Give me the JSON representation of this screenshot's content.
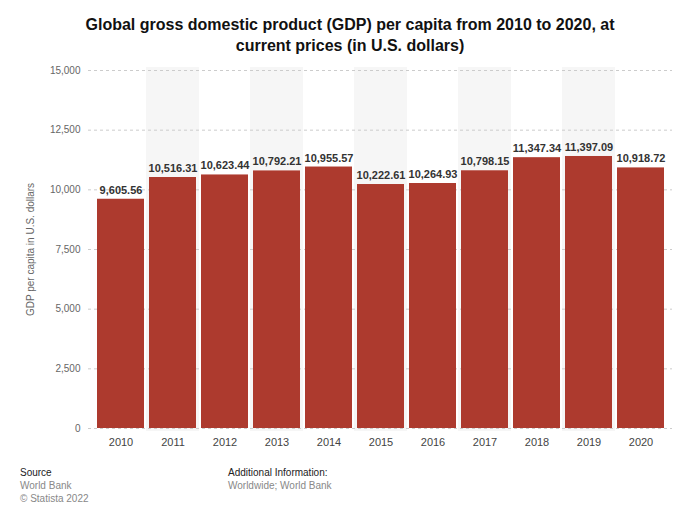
{
  "chart_data": {
    "type": "bar",
    "title": "Global gross domestic product (GDP) per capita from 2010 to 2020, at current prices (in U.S. dollars)",
    "y_label": "GDP per capita in U.S. dollars",
    "categories": [
      "2010",
      "2011",
      "2012",
      "2013",
      "2014",
      "2015",
      "2016",
      "2017",
      "2018",
      "2019",
      "2020"
    ],
    "values": [
      9605.56,
      10516.31,
      10623.44,
      10792.21,
      10955.57,
      10222.61,
      10264.93,
      10798.15,
      11347.34,
      11397.09,
      10918.72
    ],
    "value_labels": [
      "9,605.56",
      "10,516.31",
      "10,623.44",
      "10,792.21",
      "10,955.57",
      "10,222.61",
      "10,264.93",
      "10,798.15",
      "11,347.34",
      "11,397.09",
      "10,918.72"
    ],
    "color": "#ad3a2e",
    "ylim": [
      0,
      15000
    ],
    "yticks": [
      0,
      {
        "value": 2500,
        "label": "2,500"
      },
      {
        "value": 5000,
        "label": "5,000"
      },
      {
        "value": 7500,
        "label": "7,500"
      },
      {
        "value": 10000,
        "label": "10,000"
      },
      {
        "value": 12500,
        "label": "12,500"
      },
      {
        "value": 15000,
        "label": "15,000"
      }
    ],
    "grid": true,
    "data_labels": true,
    "footer": {
      "source_heading": "Source",
      "source": "World Bank",
      "copyright": "© Statista 2022",
      "info_heading": "Additional Information:",
      "info": "Worldwide; World Bank"
    }
  }
}
